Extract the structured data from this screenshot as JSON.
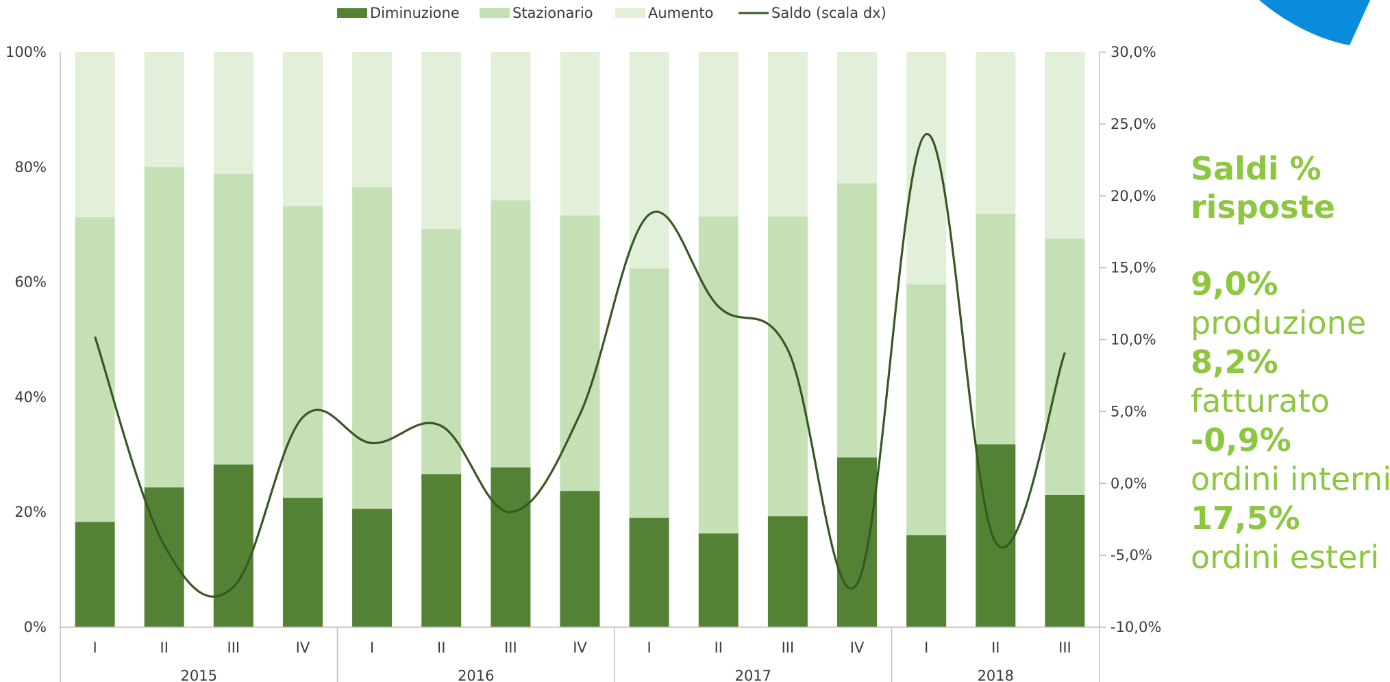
{
  "chart_data": {
    "type": "bar",
    "stacked": true,
    "percent_stacked": true,
    "legend": {
      "placement": "top",
      "entries": [
        {
          "name": "Diminuzione",
          "kind": "bar",
          "color": "#548235"
        },
        {
          "name": "Stazionario",
          "kind": "bar",
          "color": "#c5e0b4"
        },
        {
          "name": "Aumento",
          "kind": "bar",
          "color": "#e2f0d9"
        },
        {
          "name": "Saldo (scala dx)",
          "kind": "line",
          "color": "#385723"
        }
      ]
    },
    "categories": [
      "I",
      "II",
      "III",
      "IV",
      "I",
      "II",
      "III",
      "IV",
      "I",
      "II",
      "III",
      "IV",
      "I",
      "II",
      "III"
    ],
    "year_groups": [
      {
        "label": "2015",
        "count": 4
      },
      {
        "label": "2016",
        "count": 4
      },
      {
        "label": "2017",
        "count": 4
      },
      {
        "label": "2018",
        "count": 3
      }
    ],
    "series": [
      {
        "name": "Diminuzione",
        "axis": "left",
        "values": [
          18.3,
          24.3,
          28.3,
          22.5,
          20.6,
          26.6,
          27.8,
          23.7,
          19.0,
          16.3,
          19.3,
          29.5,
          16.0,
          31.8,
          23.0
        ]
      },
      {
        "name": "Stazionario",
        "axis": "left",
        "values": [
          53.0,
          55.7,
          50.5,
          50.7,
          55.9,
          42.7,
          46.4,
          47.9,
          43.4,
          55.1,
          52.1,
          47.7,
          43.6,
          40.1,
          44.6
        ]
      },
      {
        "name": "Aumento",
        "axis": "left",
        "values": [
          28.7,
          20.0,
          21.2,
          26.8,
          23.5,
          30.7,
          25.8,
          28.4,
          37.6,
          28.6,
          28.6,
          22.8,
          40.4,
          28.1,
          32.4
        ]
      },
      {
        "name": "Saldo (scala dx)",
        "axis": "right",
        "type": "line",
        "values": [
          10.2,
          -4.3,
          -7.2,
          4.6,
          2.8,
          4.0,
          -2.0,
          4.8,
          18.7,
          12.3,
          9.3,
          -7.0,
          24.3,
          -4.1,
          9.1
        ]
      }
    ],
    "y_left": {
      "min": 0,
      "max": 100,
      "ticks": [
        "0%",
        "20%",
        "40%",
        "60%",
        "80%",
        "100%"
      ],
      "tick_values": [
        0,
        20,
        40,
        60,
        80,
        100
      ]
    },
    "y_right": {
      "min": -10,
      "max": 30,
      "ticks": [
        "-10,0%",
        "-5,0%",
        "0,0%",
        "5,0%",
        "10,0%",
        "15,0%",
        "20,0%",
        "25,0%",
        "30,0%"
      ],
      "tick_values": [
        -10,
        -5,
        0,
        5,
        10,
        15,
        20,
        25,
        30
      ]
    },
    "grid": false
  },
  "side_panel": {
    "title_line1": "Saldi %",
    "title_line2": "risposte",
    "stats": [
      {
        "value": "9,0%",
        "label": "produzione"
      },
      {
        "value": "8,2%",
        "label": "fatturato"
      },
      {
        "value": "-0,9%",
        "label": "ordini interni"
      },
      {
        "value": "17,5%",
        "label": "ordini esteri"
      }
    ]
  },
  "colors": {
    "accent_green": "#8dc63f",
    "corner_blue": "#0a8bdc"
  }
}
